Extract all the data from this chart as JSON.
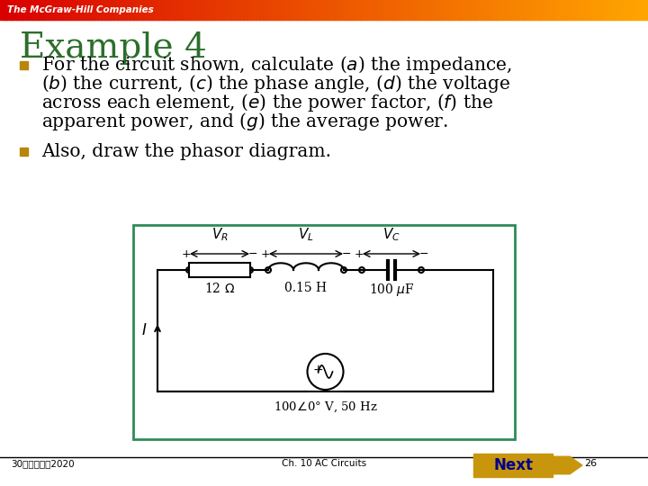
{
  "slide_bg": "#ffffff",
  "header_text": "The McGraw-Hill Companies",
  "title": "Example 4",
  "title_color": "#2d6e2d",
  "title_fontsize": 28,
  "bullet_color": "#b8860b",
  "bullet_fontsize": 14.5,
  "circuit_box_color": "#2e8b57",
  "footer_left": "30コココココ2020",
  "footer_center": "Ch. 10 AC Circuits",
  "footer_right_text": "Next",
  "footer_page": "26",
  "next_bg": "#c8960c",
  "next_text_color": "#00008b"
}
